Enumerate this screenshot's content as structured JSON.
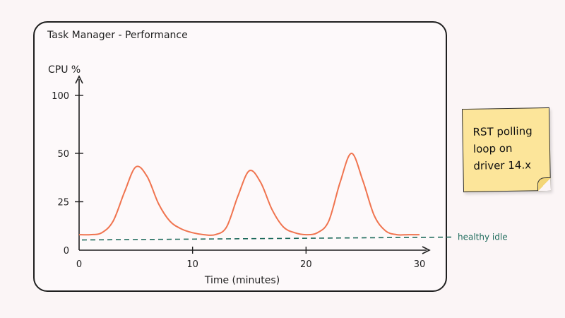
{
  "window": {
    "title": "Task Manager - Performance"
  },
  "chart_data": {
    "type": "line",
    "ylabel": "CPU %",
    "xlabel": "Time (minutes)",
    "xlim": [
      0,
      30
    ],
    "ylim": [
      0,
      100
    ],
    "xticks": [
      0,
      10,
      20,
      30
    ],
    "yticks": [
      0,
      25,
      50,
      100
    ],
    "series": [
      {
        "color": "#f0744f",
        "x": [
          0,
          1,
          2,
          3,
          4,
          5,
          6,
          7,
          8,
          9,
          10,
          11,
          12,
          13,
          14,
          15,
          16,
          17,
          18,
          19,
          20,
          21,
          22,
          23,
          24,
          25,
          26,
          27,
          28,
          29,
          30
        ],
        "y": [
          8,
          8,
          9,
          15,
          30,
          43,
          38,
          24,
          15,
          11,
          9,
          8,
          8,
          12,
          28,
          41,
          35,
          21,
          12,
          9,
          8,
          9,
          15,
          35,
          50,
          36,
          18,
          10,
          8,
          8,
          8
        ]
      }
    ],
    "reference_line": {
      "y": 6,
      "label": "healthy idle",
      "color": "#1e6b5c",
      "style": "dashed"
    }
  },
  "sticky_note": {
    "text": "RST polling loop on driver 14.x"
  }
}
